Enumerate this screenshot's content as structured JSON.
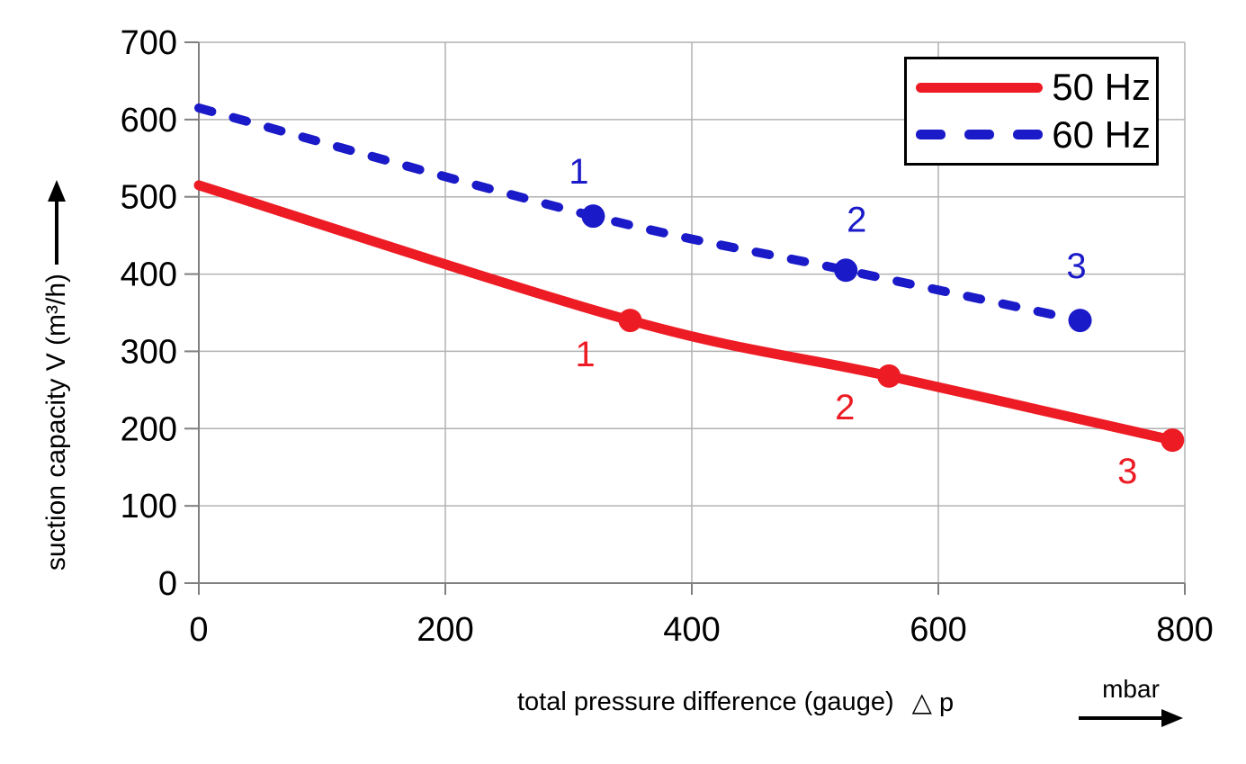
{
  "chart_data": {
    "type": "line",
    "title": "",
    "xlabel": "total pressure difference (gauge) △p",
    "ylabel": "suction capacity V (m³/h)",
    "x_unit": "mbar",
    "xlim": [
      0,
      800
    ],
    "ylim": [
      0,
      700
    ],
    "x_ticks": [
      0,
      200,
      400,
      600,
      800
    ],
    "y_ticks": [
      0,
      100,
      200,
      300,
      400,
      500,
      600,
      700
    ],
    "grid": true,
    "legend_position": "top-right",
    "series": [
      {
        "name": "50 Hz",
        "color": "#ed1c24",
        "style": "solid",
        "points": [
          [
            0,
            515
          ],
          [
            350,
            340
          ],
          [
            560,
            268
          ],
          [
            790,
            185
          ]
        ],
        "markers": [
          {
            "x": 350,
            "y": 340,
            "label": "1",
            "dx": -50,
            "dy": 37
          },
          {
            "x": 560,
            "y": 268,
            "label": "2",
            "dx": -49,
            "dy": 34
          },
          {
            "x": 790,
            "y": 185,
            "label": "3",
            "dx": -50,
            "dy": 34
          }
        ]
      },
      {
        "name": "60 Hz",
        "color": "#1a1ac8",
        "style": "dashed",
        "points": [
          [
            0,
            615
          ],
          [
            320,
            475
          ],
          [
            525,
            405
          ],
          [
            715,
            340
          ]
        ],
        "markers": [
          {
            "x": 320,
            "y": 475,
            "label": "1",
            "dx": -16,
            "dy": -50
          },
          {
            "x": 525,
            "y": 405,
            "label": "2",
            "dx": 12,
            "dy": -57
          },
          {
            "x": 715,
            "y": 340,
            "label": "3",
            "dx": -4,
            "dy": -61
          }
        ]
      }
    ]
  },
  "legend": {
    "items": [
      {
        "label": "50 Hz",
        "color": "#ed1c24",
        "style": "solid"
      },
      {
        "label": "60 Hz",
        "color": "#1a1ac8",
        "style": "dashed"
      }
    ]
  },
  "axes": {
    "y_title": "suction capacity V (m³/h)",
    "x_title": "total pressure difference (gauge)",
    "x_symbol": "△ p",
    "x_unit": "mbar"
  },
  "colors": {
    "grid": "#b2b2b2",
    "axis": "#808080",
    "tick_text": "#000000",
    "red_series": "#ed1c24",
    "blue_series": "#1a1ac8"
  }
}
